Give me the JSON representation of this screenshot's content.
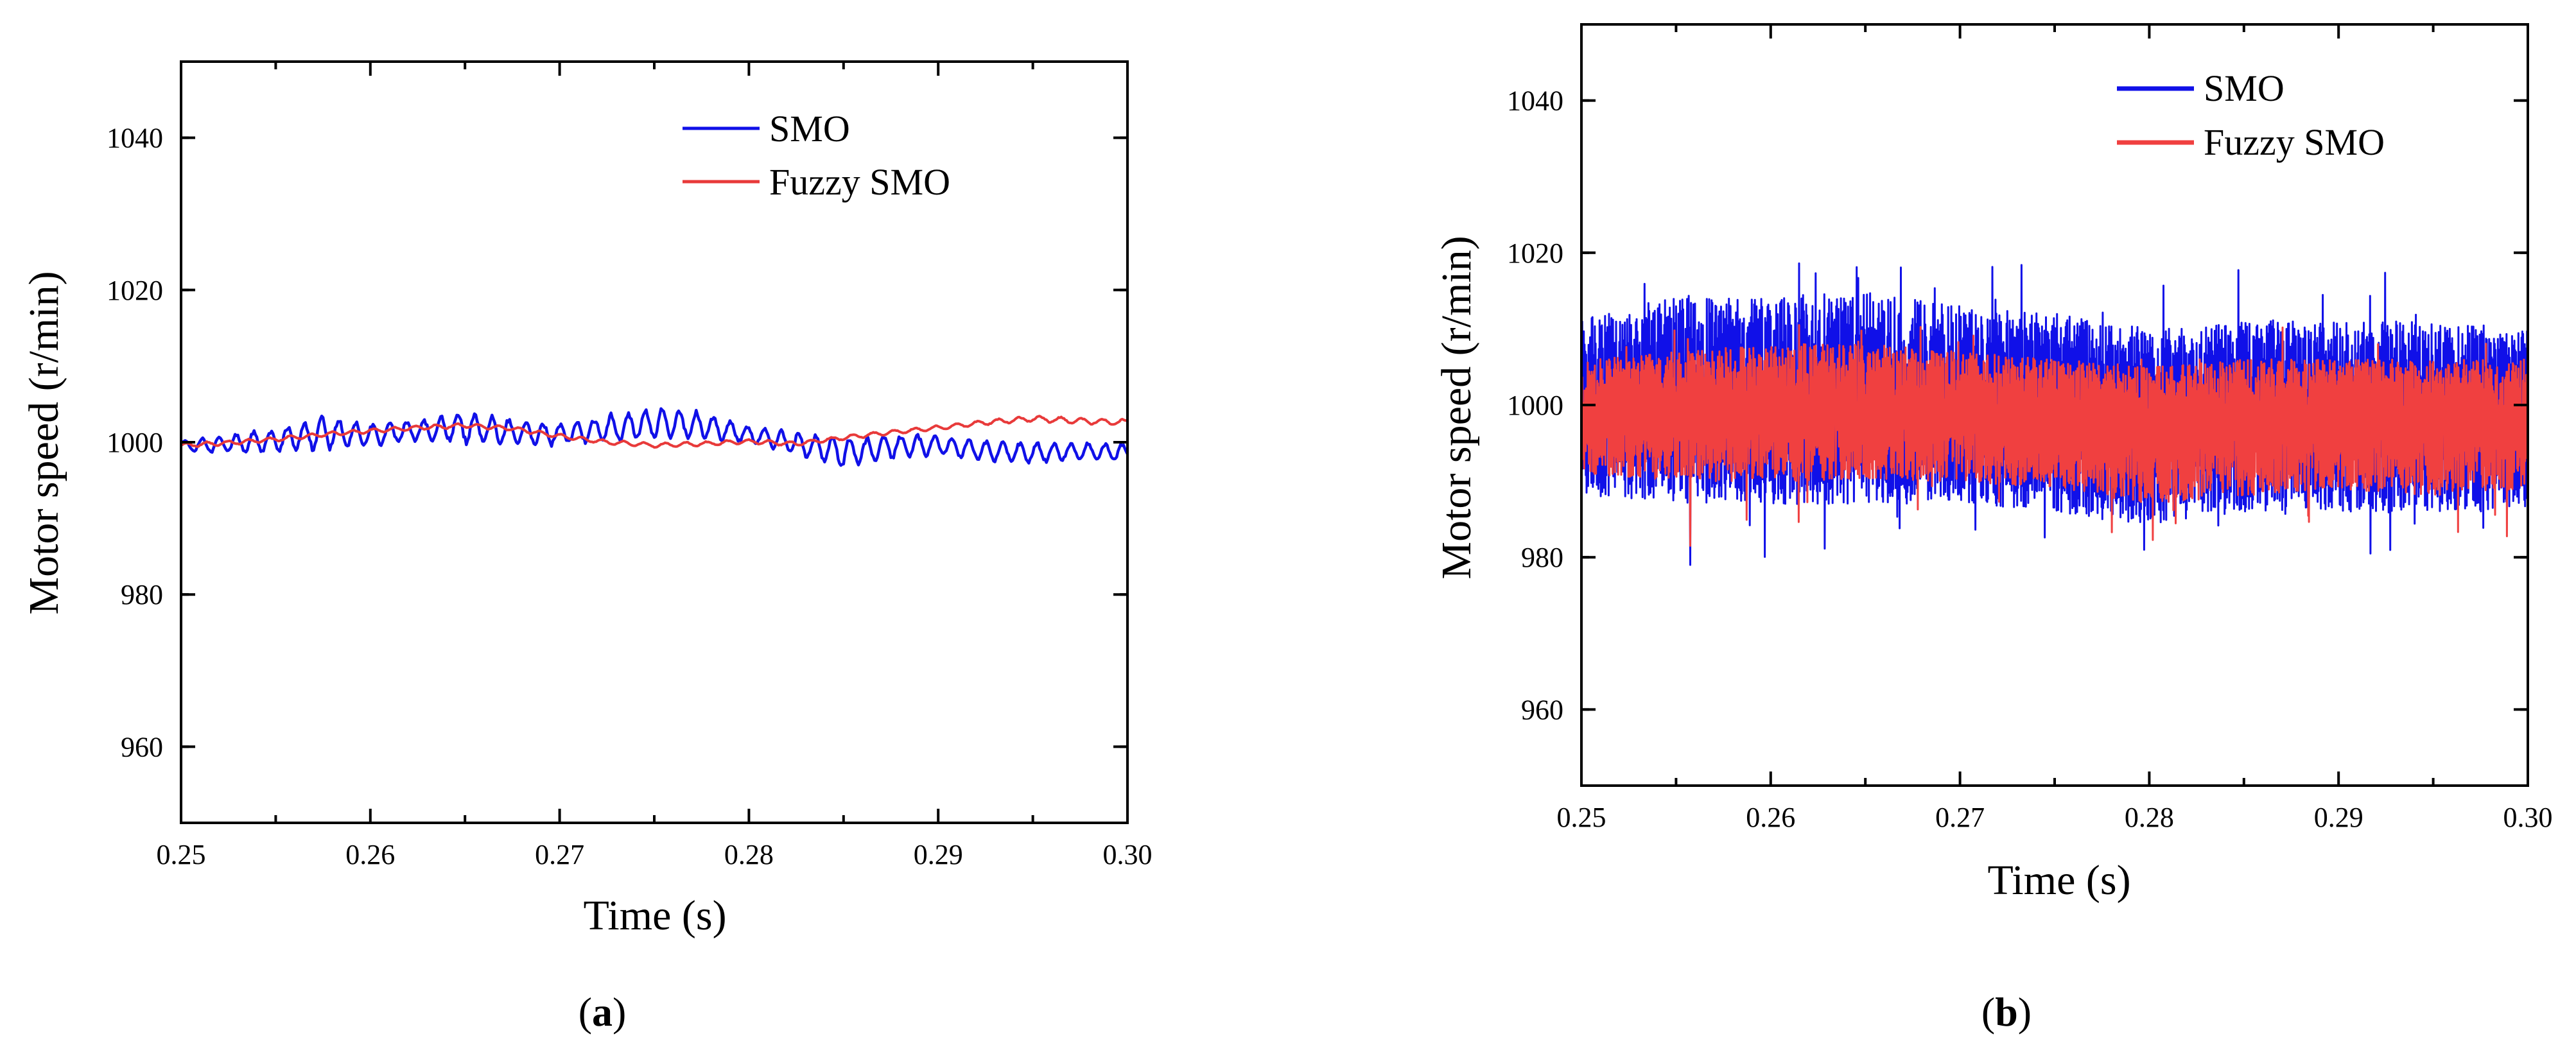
{
  "figure": {
    "panels": [
      {
        "label_open": "(",
        "label_letter": "a",
        "label_close": ")"
      },
      {
        "label_open": "(",
        "label_letter": "b",
        "label_close": ")"
      }
    ]
  },
  "chart_data": [
    {
      "type": "line",
      "panel": "a",
      "title": "",
      "xlabel": "Time (s)",
      "ylabel": "Motor speed (r/min)",
      "xlim": [
        0.25,
        0.3
      ],
      "ylim": [
        950,
        1050
      ],
      "xticks": [
        0.25,
        0.26,
        0.27,
        0.28,
        0.29,
        0.3
      ],
      "xtick_labels": [
        "0.25",
        "0.26",
        "0.27",
        "0.28",
        "0.29",
        "0.30"
      ],
      "yticks": [
        960,
        980,
        1000,
        1020,
        1040
      ],
      "ytick_labels": [
        "960",
        "980",
        "1000",
        "1020",
        "1040"
      ],
      "legend_position": "top-right",
      "series": [
        {
          "name": "SMO",
          "color": "#1010e8",
          "x": [
            0.25,
            0.2525,
            0.255,
            0.2575,
            0.26,
            0.2625,
            0.265,
            0.2675,
            0.27,
            0.2725,
            0.275,
            0.2775,
            0.28,
            0.2825,
            0.285,
            0.2875,
            0.29,
            0.2925,
            0.295,
            0.2975,
            0.3
          ],
          "y": [
            999.5,
            999.8,
            1000.3,
            1001.2,
            1001.0,
            1001.5,
            1002.0,
            1001.4,
            1001.0,
            1001.8,
            1002.5,
            1002.2,
            1001.0,
            999.8,
            998.6,
            999.4,
            999.6,
            998.9,
            998.6,
            998.8,
            998.7
          ],
          "ripple_amplitude": [
            0.8,
            1.2,
            1.6,
            2.2,
            1.6,
            1.4,
            2.2,
            1.8,
            1.4,
            1.8,
            2.4,
            1.8,
            1.2,
            1.6,
            2.0,
            1.6,
            1.4,
            1.4,
            1.4,
            1.2,
            1.2
          ]
        },
        {
          "name": "Fuzzy SMO",
          "color": "#e83a3a",
          "x": [
            0.25,
            0.2525,
            0.255,
            0.2575,
            0.26,
            0.2625,
            0.265,
            0.2675,
            0.27,
            0.2725,
            0.275,
            0.2775,
            0.28,
            0.2825,
            0.285,
            0.2875,
            0.29,
            0.2925,
            0.295,
            0.2975,
            0.3
          ],
          "y": [
            999.6,
            999.9,
            1000.4,
            1001.0,
            1001.5,
            1001.9,
            1002.2,
            1001.8,
            1000.8,
            1000.0,
            999.6,
            999.8,
            1000.1,
            999.8,
            1000.6,
            1001.3,
            1001.9,
            1002.6,
            1003.1,
            1002.8,
            1002.6
          ],
          "ripple_amplitude": [
            0.3,
            0.3,
            0.3,
            0.3,
            0.3,
            0.3,
            0.3,
            0.3,
            0.3,
            0.3,
            0.3,
            0.3,
            0.3,
            0.3,
            0.3,
            0.3,
            0.3,
            0.35,
            0.4,
            0.4,
            0.4
          ]
        }
      ]
    },
    {
      "type": "line",
      "panel": "b",
      "title": "",
      "xlabel": "Time (s)",
      "ylabel": "Motor speed (r/min)",
      "xlim": [
        0.25,
        0.3
      ],
      "ylim": [
        950,
        1050
      ],
      "xticks": [
        0.25,
        0.26,
        0.27,
        0.28,
        0.29,
        0.3
      ],
      "xtick_labels": [
        "0.25",
        "0.26",
        "0.27",
        "0.28",
        "0.29",
        "0.30"
      ],
      "yticks": [
        960,
        980,
        1000,
        1020,
        1040
      ],
      "ytick_labels": [
        "960",
        "980",
        "1000",
        "1020",
        "1040"
      ],
      "legend_position": "top-right",
      "series": [
        {
          "name": "SMO",
          "color": "#1010e8",
          "x": [
            0.25,
            0.255,
            0.26,
            0.265,
            0.27,
            0.275,
            0.28,
            0.285,
            0.29,
            0.295,
            0.3
          ],
          "y": [
            999.5,
            999.8,
            999.3,
            999.6,
            999.2,
            998.8,
            997.8,
            998.4,
            998.8,
            998.5,
            998.8
          ],
          "band_low": [
            988,
            987,
            987,
            987,
            987,
            986,
            984,
            986,
            986,
            986,
            986
          ],
          "band_high": [
            1012,
            1014,
            1014,
            1015,
            1013,
            1012,
            1010,
            1011,
            1011,
            1011,
            1010
          ],
          "peak_max": 1018.6,
          "peak_min": 979.0
        },
        {
          "name": "Fuzzy SMO",
          "color": "#f04040",
          "x": [
            0.25,
            0.255,
            0.26,
            0.265,
            0.27,
            0.275,
            0.28,
            0.285,
            0.29,
            0.295,
            0.3
          ],
          "y": [
            999.3,
            999.5,
            999.4,
            999.6,
            999.0,
            998.6,
            997.4,
            998.0,
            998.5,
            998.3,
            998.6
          ],
          "band_low": [
            991,
            990,
            990,
            990,
            990,
            989,
            987,
            988,
            989,
            988,
            989
          ],
          "band_high": [
            1006,
            1007,
            1008,
            1008,
            1007,
            1006,
            1005,
            1006,
            1006,
            1006,
            1006
          ],
          "peak_max": 1010.5,
          "peak_min": 981.5
        }
      ]
    }
  ]
}
